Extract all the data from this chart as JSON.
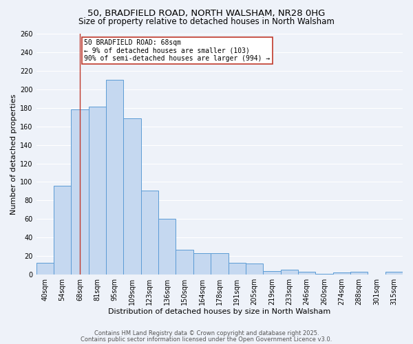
{
  "title1": "50, BRADFIELD ROAD, NORTH WALSHAM, NR28 0HG",
  "title2": "Size of property relative to detached houses in North Walsham",
  "bar_labels": [
    "40sqm",
    "54sqm",
    "68sqm",
    "81sqm",
    "95sqm",
    "109sqm",
    "123sqm",
    "136sqm",
    "150sqm",
    "164sqm",
    "178sqm",
    "191sqm",
    "205sqm",
    "219sqm",
    "233sqm",
    "246sqm",
    "260sqm",
    "274sqm",
    "288sqm",
    "301sqm",
    "315sqm"
  ],
  "bar_values": [
    13,
    96,
    178,
    181,
    210,
    169,
    91,
    60,
    27,
    23,
    23,
    13,
    12,
    4,
    5,
    3,
    1,
    2,
    3,
    0,
    3
  ],
  "bar_color": "#c5d8f0",
  "bar_edge_color": "#5b9bd5",
  "xlabel": "Distribution of detached houses by size in North Walsham",
  "ylabel": "Number of detached properties",
  "ylim": [
    0,
    260
  ],
  "yticks": [
    0,
    20,
    40,
    60,
    80,
    100,
    120,
    140,
    160,
    180,
    200,
    220,
    240,
    260
  ],
  "vline_x_idx": 2,
  "vline_color": "#c0392b",
  "annotation_title": "50 BRADFIELD ROAD: 68sqm",
  "annotation_line1": "← 9% of detached houses are smaller (103)",
  "annotation_line2": "90% of semi-detached houses are larger (994) →",
  "annotation_box_color": "#ffffff",
  "annotation_box_edge": "#c0392b",
  "footer1": "Contains HM Land Registry data © Crown copyright and database right 2025.",
  "footer2": "Contains public sector information licensed under the Open Government Licence v3.0.",
  "bg_color": "#eef2f9",
  "plot_bg_color": "#eef2f9",
  "title_fontsize": 9.5,
  "subtitle_fontsize": 8.5,
  "axis_label_fontsize": 8,
  "tick_fontsize": 7,
  "annotation_fontsize": 7,
  "footer_fontsize": 6
}
